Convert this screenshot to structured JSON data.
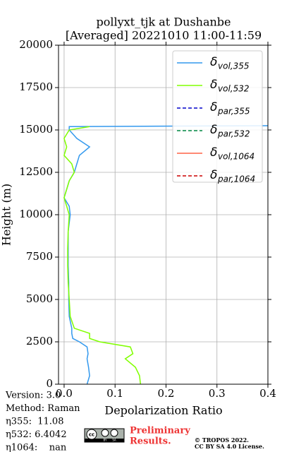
{
  "chart_data": {
    "type": "line",
    "title": "pollyxt_tjk at Dushanbe",
    "subtitle": "[Averaged] 20221010 11:00-11:59",
    "xlabel": "Depolarization Ratio",
    "ylabel": "Height (m)",
    "y": [
      0,
      500,
      1000,
      1500,
      1800,
      2200,
      2500,
      2700,
      3000,
      3300,
      4000,
      5000,
      6000,
      7000,
      8000,
      9000,
      10000,
      10500,
      11000,
      11500,
      12000,
      12500,
      13000,
      13500,
      14000,
      14500,
      15000,
      15200,
      15250
    ],
    "series": [
      {
        "symbol": "δ",
        "subscript": "vol,355",
        "color": "#3399ee",
        "dashed": false,
        "values": [
          0.045,
          0.05,
          0.048,
          0.045,
          0.047,
          0.045,
          0.03,
          0.017,
          0.015,
          0.015,
          0.01,
          0.009,
          0.009,
          0.008,
          0.008,
          0.008,
          0.012,
          0.01,
          0.0,
          0.005,
          0.01,
          0.02,
          0.025,
          0.03,
          0.05,
          0.025,
          0.01,
          0.01,
          0.4
        ]
      },
      {
        "symbol": "δ",
        "subscript": "vol,532",
        "color": "#80ff00",
        "dashed": false,
        "values": [
          0.15,
          0.148,
          0.14,
          0.12,
          0.135,
          0.13,
          0.07,
          0.05,
          0.05,
          0.02,
          0.012,
          0.01,
          0.008,
          0.007,
          0.007,
          0.008,
          0.01,
          0.005,
          0.0,
          0.005,
          0.01,
          0.02,
          0.015,
          0.0,
          0.005,
          0.0,
          0.01,
          0.05,
          null
        ]
      },
      {
        "symbol": "δ",
        "subscript": "par,355",
        "color": "#0000cc",
        "dashed": true,
        "values": [
          null,
          null,
          null,
          null,
          null,
          null,
          null,
          null,
          null,
          null,
          null,
          null,
          null,
          null,
          null,
          null,
          null,
          null,
          null,
          null,
          null,
          null,
          null,
          null,
          null,
          null,
          null,
          null,
          null
        ]
      },
      {
        "symbol": "δ",
        "subscript": "par,532",
        "color": "#008844",
        "dashed": true,
        "values": [
          null,
          null,
          null,
          null,
          null,
          null,
          null,
          null,
          null,
          null,
          null,
          null,
          null,
          null,
          null,
          null,
          null,
          null,
          null,
          null,
          null,
          null,
          null,
          null,
          null,
          null,
          null,
          null,
          null
        ]
      },
      {
        "symbol": "δ",
        "subscript": "vol,1064",
        "color": "#ff6347",
        "dashed": false,
        "values": [
          null,
          null,
          null,
          null,
          null,
          null,
          null,
          null,
          null,
          null,
          null,
          null,
          null,
          null,
          null,
          null,
          null,
          null,
          null,
          null,
          null,
          null,
          null,
          null,
          null,
          null,
          null,
          null,
          null
        ]
      },
      {
        "symbol": "δ",
        "subscript": "par,1064",
        "color": "#cc0000",
        "dashed": true,
        "values": [
          null,
          null,
          null,
          null,
          null,
          null,
          null,
          null,
          null,
          null,
          null,
          null,
          null,
          null,
          null,
          null,
          null,
          null,
          null,
          null,
          null,
          null,
          null,
          null,
          null,
          null,
          null,
          null,
          null
        ]
      }
    ],
    "xlim": [
      -0.011,
      0.4
    ],
    "xticks": [
      {
        "value": 0,
        "label": "0.0"
      },
      0.1,
      0.2,
      0.3,
      0.4
    ],
    "ylim": [
      0,
      20000
    ],
    "yticks": [
      0,
      2500,
      5000,
      7500,
      10000,
      12500,
      15000,
      17500,
      20000
    ],
    "grid": true,
    "legend": "upper right",
    "info": [
      "Version: 3.0",
      "Method: Raman",
      "η355:  11.08",
      "η532: 6.4042",
      "η1064:    nan"
    ],
    "logo": {
      "cc": "cc",
      "by": "BY",
      "sa": "SA"
    },
    "notice": [
      "Preliminary",
      "Results."
    ],
    "copyright": [
      "© TROPOS 2022.",
      "CC BY SA 4.0 License."
    ]
  }
}
